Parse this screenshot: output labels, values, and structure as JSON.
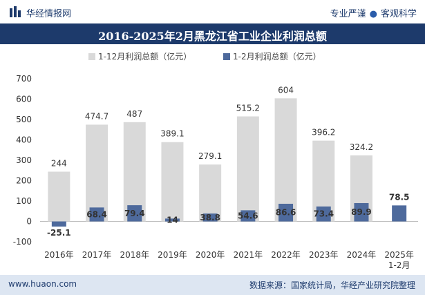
{
  "header": {
    "brand": "华经情报网",
    "tagline_1": "专业严谨",
    "tagline_sep": "●",
    "tagline_2": "客观科学"
  },
  "footer": {
    "website": "www.huaon.com",
    "source": "数据来源：国家统计局，华经产业研究院整理"
  },
  "colors": {
    "series_1": "#d9d9d9",
    "series_2": "#4e6a9c",
    "title_bg": "#1d3a6b",
    "axis_text": "#333333"
  },
  "chart_data": {
    "type": "bar",
    "title": "2016-2025年2月黑龙江省工业企业利润总额",
    "categories": [
      "2016年",
      "2017年",
      "2018年",
      "2019年",
      "2020年",
      "2021年",
      "2022年",
      "2023年",
      "2024年",
      "2025年\n1-2月"
    ],
    "series": [
      {
        "name": "1-12月利润总额（亿元）",
        "values": [
          244,
          474.7,
          487,
          389.1,
          279.1,
          515.2,
          604,
          396.2,
          324.2,
          null
        ]
      },
      {
        "name": "1-2月利润总额（亿元）",
        "values": [
          -25.1,
          68.4,
          79.4,
          14,
          38.8,
          54.6,
          86.6,
          73.4,
          89.9,
          78.5
        ]
      }
    ],
    "ylim": [
      -100,
      700
    ],
    "yticks": [
      -100,
      0,
      100,
      200,
      300,
      400,
      500,
      600,
      700
    ],
    "xlabel": "",
    "ylabel": "",
    "legend": "top-center",
    "grid": false
  }
}
